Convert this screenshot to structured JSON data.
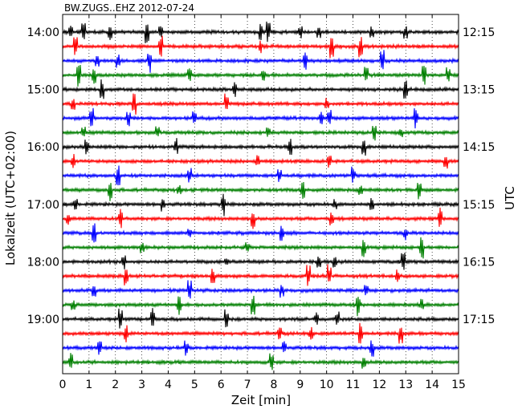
{
  "chart_data": {
    "type": "line",
    "title": "BW.ZUGS..EHZ 2012-07-24",
    "xlabel": "Zeit  [min]",
    "ylabel": "Lokalzeit (UTC+02:00)",
    "ylabel_right": "UTC",
    "xlim": [
      0,
      15
    ],
    "x_ticks": [
      "0",
      "1",
      "2",
      "3",
      "4",
      "5",
      "6",
      "7",
      "8",
      "9",
      "10",
      "11",
      "12",
      "13",
      "14",
      "15"
    ],
    "grid": "vertical dotted at every minute",
    "rows_per_hour": 4,
    "row_minutes": 15,
    "series_colors": [
      "#000000",
      "#ff0000",
      "#0000ff",
      "#007f00"
    ],
    "left_ticks": [
      {
        "row": 0,
        "label": "14:00"
      },
      {
        "row": 4,
        "label": "15:00"
      },
      {
        "row": 8,
        "label": "16:00"
      },
      {
        "row": 12,
        "label": "17:00"
      },
      {
        "row": 16,
        "label": "18:00"
      },
      {
        "row": 20,
        "label": "19:00"
      }
    ],
    "right_ticks": [
      {
        "row": 0,
        "label": "12:15"
      },
      {
        "row": 4,
        "label": "13:15"
      },
      {
        "row": 8,
        "label": "14:15"
      },
      {
        "row": 12,
        "label": "15:15"
      },
      {
        "row": 16,
        "label": "16:15"
      },
      {
        "row": 20,
        "label": "17:15"
      }
    ],
    "rows": [
      {
        "row": 0,
        "color": "#000000",
        "spikes": [
          0.3,
          0.8,
          1.8,
          3.2,
          3.7,
          7.5,
          7.8,
          9.0,
          9.7,
          11.7,
          13.0
        ]
      },
      {
        "row": 1,
        "color": "#ff0000",
        "spikes": [
          0.5,
          3.7,
          7.5,
          10.2,
          11.3
        ]
      },
      {
        "row": 2,
        "color": "#0000ff",
        "spikes": [
          1.3,
          2.1,
          3.3,
          9.2,
          12.1
        ]
      },
      {
        "row": 3,
        "color": "#007f00",
        "spikes": [
          0.6,
          1.2,
          4.8,
          7.6,
          11.5,
          13.7,
          14.6
        ]
      },
      {
        "row": 4,
        "color": "#000000",
        "spikes": [
          1.5,
          6.5,
          13.0
        ]
      },
      {
        "row": 5,
        "color": "#ff0000",
        "spikes": [
          0.4,
          2.7,
          6.2,
          10.0
        ]
      },
      {
        "row": 6,
        "color": "#0000ff",
        "spikes": [
          1.1,
          2.5,
          5.0,
          9.8,
          10.1,
          13.4
        ]
      },
      {
        "row": 7,
        "color": "#007f00",
        "spikes": [
          0.8,
          3.6,
          7.8,
          11.8,
          12.8
        ]
      },
      {
        "row": 8,
        "color": "#000000",
        "spikes": [
          0.9,
          4.3,
          8.6,
          11.4
        ]
      },
      {
        "row": 9,
        "color": "#ff0000",
        "spikes": [
          0.4,
          7.4,
          10.1,
          14.5
        ]
      },
      {
        "row": 10,
        "color": "#0000ff",
        "spikes": [
          2.1,
          4.8,
          8.2,
          11.0
        ]
      },
      {
        "row": 11,
        "color": "#007f00",
        "spikes": [
          1.8,
          4.4,
          9.1,
          11.3,
          13.5
        ]
      },
      {
        "row": 12,
        "color": "#000000",
        "spikes": [
          0.5,
          3.8,
          6.1,
          10.3,
          11.7
        ]
      },
      {
        "row": 13,
        "color": "#ff0000",
        "spikes": [
          0.2,
          2.2,
          7.2,
          10.2,
          14.3
        ]
      },
      {
        "row": 14,
        "color": "#0000ff",
        "spikes": [
          1.2,
          4.8,
          8.3,
          13.0
        ]
      },
      {
        "row": 15,
        "color": "#007f00",
        "spikes": [
          3.0,
          7.0,
          11.4,
          13.6
        ]
      },
      {
        "row": 16,
        "color": "#000000",
        "spikes": [
          2.3,
          6.2,
          9.7,
          10.3,
          12.9
        ]
      },
      {
        "row": 17,
        "color": "#ff0000",
        "spikes": [
          2.4,
          5.7,
          9.3,
          10.1,
          12.7
        ]
      },
      {
        "row": 18,
        "color": "#0000ff",
        "spikes": [
          1.2,
          4.8,
          8.3,
          11.5
        ]
      },
      {
        "row": 19,
        "color": "#007f00",
        "spikes": [
          0.4,
          4.4,
          7.2,
          11.2,
          13.6
        ]
      },
      {
        "row": 20,
        "color": "#000000",
        "spikes": [
          2.2,
          3.4,
          6.2,
          9.6,
          10.4
        ]
      },
      {
        "row": 21,
        "color": "#ff0000",
        "spikes": [
          2.4,
          8.2,
          9.4,
          11.3,
          12.8
        ]
      },
      {
        "row": 22,
        "color": "#0000ff",
        "spikes": [
          1.4,
          4.7,
          8.4,
          11.7
        ]
      },
      {
        "row": 23,
        "color": "#007f00",
        "spikes": [
          0.3,
          7.9,
          11.4
        ]
      }
    ]
  }
}
